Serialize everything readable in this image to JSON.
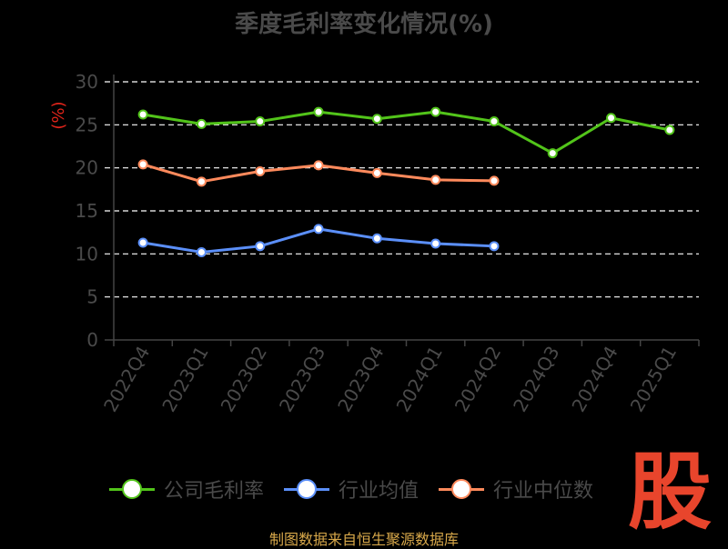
{
  "colors": {
    "company": "#52c41a",
    "industry_avg": "#5b8ff9",
    "industry_median": "#ff8a5c",
    "watermark": "#e8452c",
    "source": "#d8a84a"
  },
  "legend_items": [
    {
      "label": "公司毛利率",
      "color": "#52c41a"
    },
    {
      "label": "行业均值",
      "color": "#5b8ff9"
    },
    {
      "label": "行业中位数",
      "color": "#ff8a5c"
    }
  ],
  "source_note": "制图数据来自恒生聚源数据库",
  "watermark_text": "股",
  "chart_data": {
    "type": "line",
    "title": "季度毛利率变化情况(%)",
    "ylabel": "(%)",
    "xlabel": "",
    "ylim": [
      0,
      30
    ],
    "yticks": [
      0,
      5,
      10,
      15,
      20,
      25,
      30
    ],
    "grid": true,
    "legend_position": "bottom",
    "categories": [
      "2022Q4",
      "2023Q1",
      "2023Q2",
      "2023Q3",
      "2023Q4",
      "2024Q1",
      "2024Q2",
      "2024Q3",
      "2024Q4",
      "2025Q1"
    ],
    "series": [
      {
        "name": "公司毛利率",
        "values": [
          26.2,
          25.1,
          25.4,
          26.5,
          25.7,
          26.5,
          25.4,
          21.7,
          25.8,
          24.4
        ]
      },
      {
        "name": "行业均值",
        "values": [
          11.3,
          10.2,
          10.9,
          12.9,
          11.8,
          11.2,
          10.9,
          null,
          null,
          null
        ]
      },
      {
        "name": "行业中位数",
        "values": [
          20.4,
          18.4,
          19.6,
          20.3,
          19.4,
          18.6,
          18.5,
          null,
          null,
          null
        ]
      }
    ]
  }
}
